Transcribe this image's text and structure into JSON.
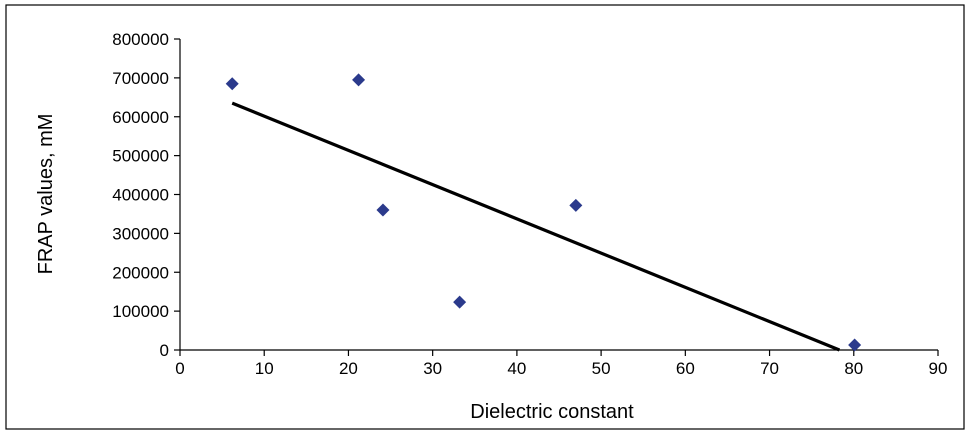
{
  "chart_data": {
    "type": "scatter",
    "title": "",
    "xlabel": "Dielectric constant",
    "ylabel": "FRAP values, mM",
    "xlim": [
      0,
      90
    ],
    "ylim": [
      0,
      800000
    ],
    "x_ticks": [
      0,
      10,
      20,
      30,
      40,
      50,
      60,
      70,
      80,
      90
    ],
    "y_ticks": [
      0,
      100000,
      200000,
      300000,
      400000,
      500000,
      600000,
      700000,
      800000
    ],
    "x_tick_labels": [
      "0",
      "10",
      "20",
      "30",
      "40",
      "50",
      "60",
      "70",
      "80",
      "90"
    ],
    "y_tick_labels": [
      "0",
      "100000",
      "200000",
      "300000",
      "400000",
      "500000",
      "600000",
      "700000",
      "800000"
    ],
    "grid": false,
    "legend": "none",
    "series": [
      {
        "marker": "diamond",
        "color": "#2b3a8c",
        "points": [
          {
            "x": 6.2,
            "y": 685000
          },
          {
            "x": 21.2,
            "y": 695000
          },
          {
            "x": 24.1,
            "y": 360000
          },
          {
            "x": 33.2,
            "y": 123000
          },
          {
            "x": 47.0,
            "y": 372000
          },
          {
            "x": 80.1,
            "y": 13000
          }
        ]
      }
    ],
    "trendline": {
      "type": "linear",
      "color": "#000000",
      "from": {
        "x": 6.2,
        "y": 635000
      },
      "to": {
        "x": 78.3,
        "y": 0
      }
    }
  }
}
